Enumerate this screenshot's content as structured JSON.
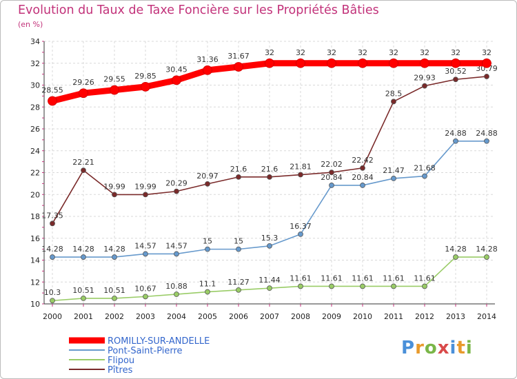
{
  "chart_data": {
    "type": "line",
    "title": "Evolution du Taux de Taxe Foncière sur les Propriétés Bâties",
    "subtitle": "(en %)",
    "x": [
      "2000",
      "2001",
      "2002",
      "2003",
      "2004",
      "2005",
      "2006",
      "2007",
      "2008",
      "2009",
      "2010",
      "2011",
      "2012",
      "2013",
      "2014"
    ],
    "ylim": [
      10,
      34
    ],
    "yticks": [
      10,
      12,
      14,
      16,
      18,
      20,
      22,
      24,
      26,
      28,
      30,
      32,
      34
    ],
    "grid": true,
    "legend_position": "bottom-left",
    "series": [
      {
        "name": "ROMILLY-SUR-ANDELLE",
        "color": "#ff0000",
        "values": [
          28.55,
          29.26,
          29.55,
          29.85,
          30.45,
          31.36,
          31.67,
          32,
          32,
          32,
          32,
          32,
          32,
          32,
          32
        ],
        "labels": [
          "28.55",
          "29.26",
          "29.55",
          "29.85",
          "30.45",
          "31.36",
          "31.67",
          "32",
          "32",
          "32",
          "32",
          "32",
          "32",
          "32",
          "32"
        ]
      },
      {
        "name": "Pont-Saint-Pierre",
        "color": "#6699cc",
        "values": [
          14.28,
          14.28,
          14.28,
          14.57,
          14.57,
          15,
          15,
          15.3,
          16.37,
          20.84,
          20.84,
          21.47,
          21.68,
          24.88,
          24.88
        ],
        "labels": [
          "14.28",
          "14.28",
          "14.28",
          "14.57",
          "14.57",
          "15",
          "15",
          "15.3",
          "16.37",
          "20.84",
          "20.84",
          "21.47",
          "21.68",
          "24.88",
          "24.88"
        ]
      },
      {
        "name": "Flipou",
        "color": "#99cc66",
        "values": [
          10.3,
          10.51,
          10.51,
          10.67,
          10.88,
          11.1,
          11.27,
          11.44,
          11.61,
          11.61,
          11.61,
          11.61,
          11.61,
          14.28,
          14.28
        ],
        "labels": [
          "10.3",
          "10.51",
          "10.51",
          "10.67",
          "10.88",
          "11.1",
          "11.27",
          "11.44",
          "11.61",
          "11.61",
          "11.61",
          "11.61",
          "11.61",
          "14.28",
          "14.28"
        ]
      },
      {
        "name": "Pîtres",
        "color": "#7a2a2a",
        "values": [
          17.35,
          22.21,
          19.99,
          19.99,
          20.29,
          20.97,
          21.6,
          21.6,
          21.81,
          22.02,
          22.42,
          28.5,
          29.93,
          30.52,
          30.79
        ],
        "labels": [
          "17.35",
          "22.21",
          "19.99",
          "19.99",
          "20.29",
          "20.97",
          "21.6",
          "21.6",
          "21.81",
          "22.02",
          "22.42",
          "28.5",
          "29.93",
          "30.52",
          "30.79"
        ]
      }
    ]
  },
  "logo": {
    "text": "Proxiti"
  }
}
